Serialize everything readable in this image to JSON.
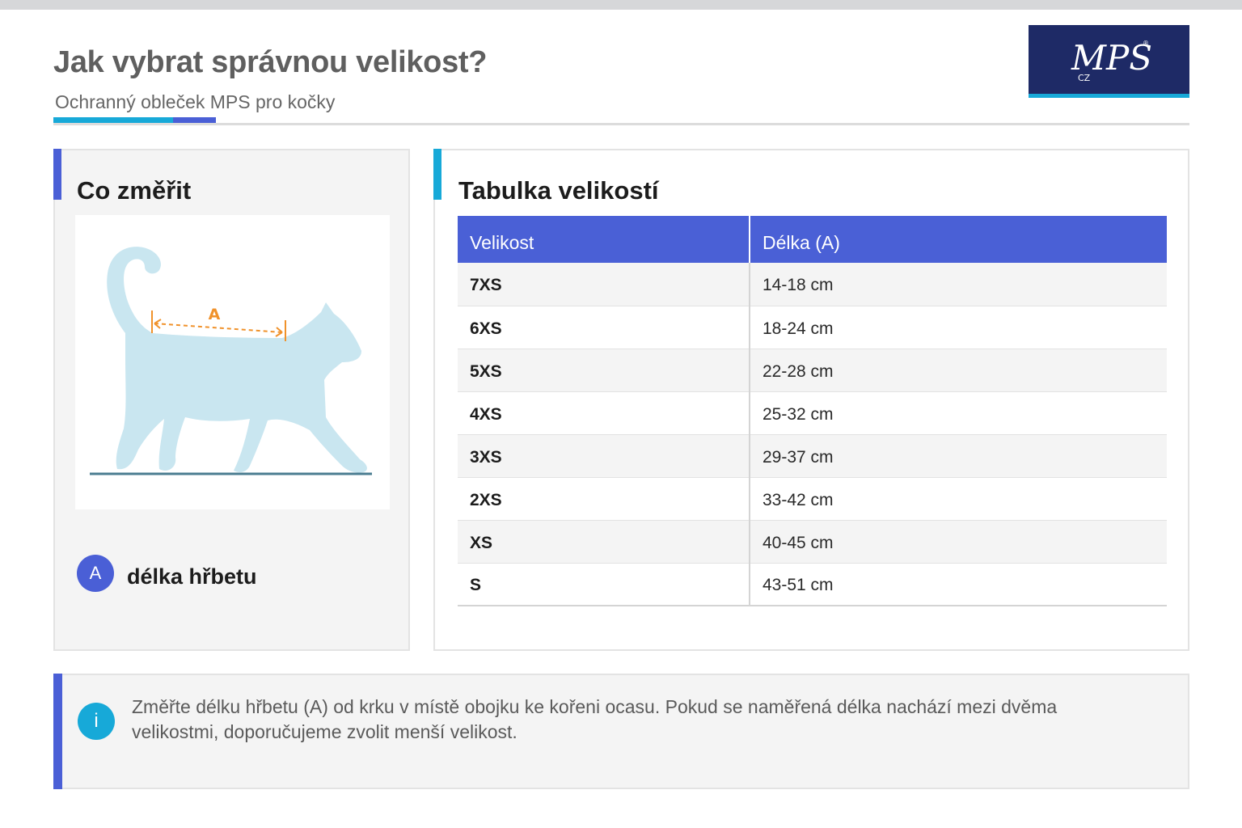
{
  "header": {
    "title": "Jak vybrat správnou velikost?",
    "subtitle": "Ochranný obleček MPS pro kočky",
    "logo_text": "MPS",
    "logo_subtext": "CZ",
    "logo_mark": "®"
  },
  "colors": {
    "accent_blue": "#4a5fd6",
    "accent_cyan": "#17a9d8",
    "logo_navy": "#1e2a66",
    "cat_fill": "#c9e6f0",
    "measure_orange": "#f0922b"
  },
  "measure_panel": {
    "title": "Co změřit",
    "diagram_label": "A",
    "legend": [
      {
        "badge": "A",
        "label": "délka hřbetu"
      }
    ]
  },
  "size_panel": {
    "title": "Tabulka velikostí",
    "columns": [
      "Velikost",
      "Délka (A)"
    ],
    "rows": [
      {
        "size": "7XS",
        "length": "14-18 cm"
      },
      {
        "size": "6XS",
        "length": "18-24 cm"
      },
      {
        "size": "5XS",
        "length": "22-28 cm"
      },
      {
        "size": "4XS",
        "length": "25-32 cm"
      },
      {
        "size": "3XS",
        "length": "29-37 cm"
      },
      {
        "size": "2XS",
        "length": "33-42 cm"
      },
      {
        "size": "XS",
        "length": "40-45 cm"
      },
      {
        "size": "S",
        "length": "43-51 cm"
      }
    ]
  },
  "note": {
    "icon": "i",
    "text": "Změřte délku hřbetu (A) od krku v místě obojku ke kořeni ocasu. Pokud se naměřená délka nachází mezi dvěma velikostmi, doporučujeme zvolit menší velikost."
  }
}
